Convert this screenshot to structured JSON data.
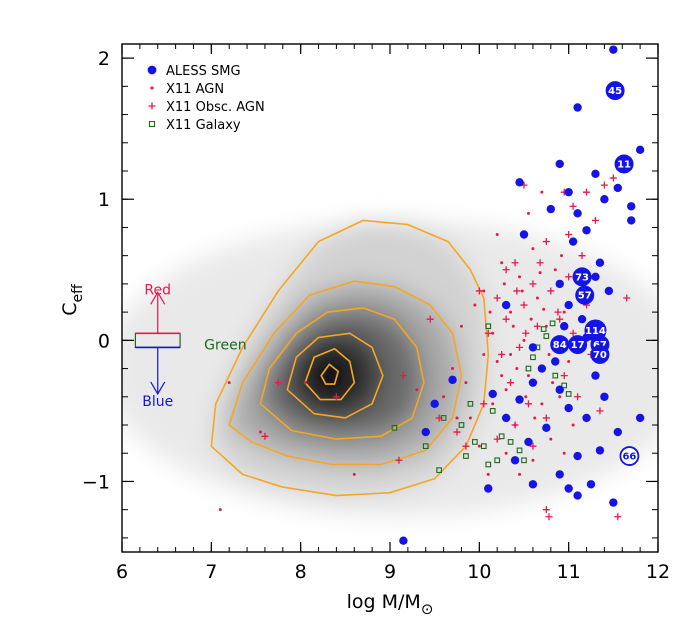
{
  "colors": {
    "agn": "#e8194a",
    "smg": "#1414e6",
    "galaxy": "#1a6b1a",
    "contour": "#f5a623",
    "red_label": "#e8194a",
    "green_label": "#1a6b1a",
    "blue_label": "#1414e6"
  },
  "chart_data": {
    "type": "scatter",
    "xlabel": "log M/M",
    "xlabel_sub": "⊙",
    "ylabel": "C",
    "ylabel_sub": "eff",
    "xlim": [
      6,
      12
    ],
    "ylim": [
      -1.5,
      2.1
    ],
    "x_ticks": [
      6,
      7,
      8,
      9,
      10,
      11,
      12
    ],
    "x_tick_labels": [
      "6",
      "7",
      "8",
      "9",
      "10",
      "11",
      "12"
    ],
    "y_ticks": [
      -1,
      0,
      1,
      2
    ],
    "y_tick_labels": [
      "−1",
      "0",
      "1",
      "2"
    ],
    "legend_position": "top-left",
    "legend": [
      {
        "label": "ALESS SMG",
        "marker": "filled-circle",
        "color": "smg"
      },
      {
        "label": "X11 AGN",
        "marker": "dot",
        "color": "agn"
      },
      {
        "label": "X11 Obsc. AGN",
        "marker": "plus",
        "color": "agn"
      },
      {
        "label": "X11 Galaxy",
        "marker": "open-square",
        "color": "galaxy"
      }
    ],
    "density_background": {
      "description": "grayscale 2D density of galaxies",
      "peak": {
        "x": 8.2,
        "y": -0.25
      }
    },
    "color_regions": {
      "box_center": 0,
      "box_x": [
        6.15,
        6.65
      ],
      "box_y": [
        -0.05,
        0.05
      ],
      "labels": [
        {
          "text": "Red",
          "x": 6.4,
          "y": 0.36,
          "color": "red_label"
        },
        {
          "text": "Green",
          "x": 6.92,
          "y": -0.03,
          "color": "green_label"
        },
        {
          "text": "Blue",
          "x": 6.4,
          "y": -0.43,
          "color": "blue_label"
        }
      ]
    },
    "contours": [
      [
        [
          7.0,
          -0.75
        ],
        [
          7.05,
          -0.45
        ],
        [
          7.35,
          -0.05
        ],
        [
          7.75,
          0.35
        ],
        [
          8.2,
          0.7
        ],
        [
          8.7,
          0.85
        ],
        [
          9.2,
          0.82
        ],
        [
          9.65,
          0.7
        ],
        [
          9.9,
          0.5
        ],
        [
          10.05,
          0.3
        ],
        [
          10.1,
          -0.1
        ],
        [
          10.05,
          -0.45
        ],
        [
          9.85,
          -0.75
        ],
        [
          9.5,
          -0.98
        ],
        [
          9.0,
          -1.08
        ],
        [
          8.4,
          -1.1
        ],
        [
          7.8,
          -1.04
        ],
        [
          7.35,
          -0.95
        ]
      ],
      [
        [
          7.2,
          -0.6
        ],
        [
          7.35,
          -0.3
        ],
        [
          7.7,
          0.05
        ],
        [
          8.1,
          0.32
        ],
        [
          8.6,
          0.42
        ],
        [
          9.05,
          0.38
        ],
        [
          9.45,
          0.25
        ],
        [
          9.7,
          0.05
        ],
        [
          9.8,
          -0.25
        ],
        [
          9.7,
          -0.55
        ],
        [
          9.4,
          -0.78
        ],
        [
          8.9,
          -0.88
        ],
        [
          8.35,
          -0.88
        ],
        [
          7.85,
          -0.82
        ],
        [
          7.45,
          -0.72
        ]
      ],
      [
        [
          7.55,
          -0.45
        ],
        [
          7.65,
          -0.2
        ],
        [
          7.95,
          0.05
        ],
        [
          8.3,
          0.2
        ],
        [
          8.7,
          0.23
        ],
        [
          9.05,
          0.15
        ],
        [
          9.3,
          -0.05
        ],
        [
          9.38,
          -0.3
        ],
        [
          9.25,
          -0.55
        ],
        [
          8.9,
          -0.68
        ],
        [
          8.4,
          -0.7
        ],
        [
          7.9,
          -0.64
        ]
      ],
      [
        [
          7.85,
          -0.35
        ],
        [
          7.95,
          -0.12
        ],
        [
          8.2,
          0.02
        ],
        [
          8.55,
          0.05
        ],
        [
          8.8,
          -0.05
        ],
        [
          8.92,
          -0.25
        ],
        [
          8.8,
          -0.45
        ],
        [
          8.5,
          -0.55
        ],
        [
          8.15,
          -0.52
        ]
      ],
      [
        [
          8.05,
          -0.3
        ],
        [
          8.15,
          -0.12
        ],
        [
          8.38,
          -0.06
        ],
        [
          8.55,
          -0.15
        ],
        [
          8.6,
          -0.3
        ],
        [
          8.45,
          -0.42
        ],
        [
          8.22,
          -0.42
        ]
      ],
      [
        [
          8.23,
          -0.25
        ],
        [
          8.32,
          -0.17
        ],
        [
          8.42,
          -0.22
        ],
        [
          8.38,
          -0.31
        ],
        [
          8.28,
          -0.31
        ]
      ]
    ],
    "smg_points": [
      {
        "x": 11.5,
        "y": 2.06
      },
      {
        "x": 11.1,
        "y": 1.65
      },
      {
        "x": 11.8,
        "y": 1.35
      },
      {
        "x": 10.9,
        "y": 1.25
      },
      {
        "x": 11.3,
        "y": 1.18
      },
      {
        "x": 11.55,
        "y": 1.08
      },
      {
        "x": 10.45,
        "y": 1.12
      },
      {
        "x": 11.0,
        "y": 1.05
      },
      {
        "x": 11.4,
        "y": 1.0
      },
      {
        "x": 11.7,
        "y": 0.95
      },
      {
        "x": 10.8,
        "y": 0.93
      },
      {
        "x": 11.1,
        "y": 0.9
      },
      {
        "x": 11.7,
        "y": 0.85
      },
      {
        "x": 11.2,
        "y": 0.78
      },
      {
        "x": 10.5,
        "y": 0.75
      },
      {
        "x": 11.05,
        "y": 0.7
      },
      {
        "x": 11.35,
        "y": 0.55
      },
      {
        "x": 11.3,
        "y": 0.45
      },
      {
        "x": 11.45,
        "y": 0.35
      },
      {
        "x": 10.9,
        "y": 0.4
      },
      {
        "x": 11.0,
        "y": 0.25
      },
      {
        "x": 10.95,
        "y": 0.1
      },
      {
        "x": 11.2,
        "y": 0.02
      },
      {
        "x": 10.85,
        "y": -0.15
      },
      {
        "x": 10.7,
        "y": -0.2
      },
      {
        "x": 11.3,
        "y": -0.25
      },
      {
        "x": 10.6,
        "y": -0.3
      },
      {
        "x": 10.9,
        "y": -0.35
      },
      {
        "x": 11.4,
        "y": -0.4
      },
      {
        "x": 10.45,
        "y": -0.42
      },
      {
        "x": 11.0,
        "y": -0.48
      },
      {
        "x": 11.2,
        "y": -0.55
      },
      {
        "x": 10.75,
        "y": -0.62
      },
      {
        "x": 11.55,
        "y": -0.65
      },
      {
        "x": 10.3,
        "y": -0.55
      },
      {
        "x": 10.15,
        "y": -0.38
      },
      {
        "x": 9.7,
        "y": -0.28
      },
      {
        "x": 9.5,
        "y": -0.45
      },
      {
        "x": 9.4,
        "y": -0.65
      },
      {
        "x": 10.55,
        "y": -0.72
      },
      {
        "x": 11.35,
        "y": -0.78
      },
      {
        "x": 11.1,
        "y": -0.82
      },
      {
        "x": 10.4,
        "y": -0.85
      },
      {
        "x": 10.9,
        "y": -0.95
      },
      {
        "x": 11.25,
        "y": -1.02
      },
      {
        "x": 11.0,
        "y": -1.05
      },
      {
        "x": 10.6,
        "y": -1.02
      },
      {
        "x": 10.1,
        "y": -1.05
      },
      {
        "x": 11.1,
        "y": -1.1
      },
      {
        "x": 11.5,
        "y": -1.15
      },
      {
        "x": 11.8,
        "y": -0.55
      },
      {
        "x": 9.15,
        "y": -1.42
      },
      {
        "x": 10.3,
        "y": 0.25
      },
      {
        "x": 10.6,
        "y": -0.05
      },
      {
        "x": 11.15,
        "y": 0.15
      }
    ],
    "smg_labeled": [
      {
        "x": 11.52,
        "y": 1.77,
        "label": "45",
        "filled": true
      },
      {
        "x": 11.62,
        "y": 1.25,
        "label": "11",
        "filled": true
      },
      {
        "x": 11.15,
        "y": 0.45,
        "label": "73",
        "filled": true
      },
      {
        "x": 11.18,
        "y": 0.32,
        "label": "57",
        "filled": true
      },
      {
        "x": 11.3,
        "y": 0.07,
        "label": "114",
        "filled": true
      },
      {
        "x": 10.9,
        "y": -0.03,
        "label": "84",
        "filled": true
      },
      {
        "x": 11.1,
        "y": -0.03,
        "label": "17",
        "filled": true
      },
      {
        "x": 11.35,
        "y": -0.03,
        "label": "67",
        "filled": true
      },
      {
        "x": 11.35,
        "y": -0.1,
        "label": "70",
        "filled": true
      },
      {
        "x": 11.68,
        "y": -0.82,
        "label": "66",
        "filled": false
      }
    ],
    "agn_points": [
      {
        "x": 7.2,
        "y": -0.3
      },
      {
        "x": 7.1,
        "y": -1.2
      },
      {
        "x": 7.55,
        "y": -0.65
      },
      {
        "x": 8.05,
        "y": -0.3
      },
      {
        "x": 8.6,
        "y": -0.95
      },
      {
        "x": 9.3,
        "y": -0.35
      },
      {
        "x": 9.7,
        "y": -0.2
      },
      {
        "x": 9.8,
        "y": 0.1
      },
      {
        "x": 9.9,
        "y": -0.55
      },
      {
        "x": 10.0,
        "y": -0.75
      },
      {
        "x": 10.05,
        "y": 0.35
      },
      {
        "x": 10.15,
        "y": 0.05
      },
      {
        "x": 10.2,
        "y": -0.15
      },
      {
        "x": 10.25,
        "y": 0.55
      },
      {
        "x": 10.3,
        "y": -0.35
      },
      {
        "x": 10.35,
        "y": 0.2
      },
      {
        "x": 10.4,
        "y": -0.6
      },
      {
        "x": 10.45,
        "y": 0.45
      },
      {
        "x": 10.5,
        "y": 0.0
      },
      {
        "x": 10.55,
        "y": -0.25
      },
      {
        "x": 10.6,
        "y": 0.65
      },
      {
        "x": 10.65,
        "y": 0.3
      },
      {
        "x": 10.7,
        "y": -0.45
      },
      {
        "x": 10.75,
        "y": 0.1
      },
      {
        "x": 10.8,
        "y": -0.7
      },
      {
        "x": 10.85,
        "y": 0.5
      },
      {
        "x": 10.9,
        "y": -0.4
      },
      {
        "x": 10.95,
        "y": 0.2
      },
      {
        "x": 11.0,
        "y": -0.15
      },
      {
        "x": 10.45,
        "y": -0.95
      },
      {
        "x": 10.3,
        "y": -0.8
      },
      {
        "x": 10.1,
        "y": -0.95
      },
      {
        "x": 9.95,
        "y": 0.25
      },
      {
        "x": 10.2,
        "y": 0.75
      },
      {
        "x": 10.7,
        "y": 1.05
      },
      {
        "x": 10.55,
        "y": 0.9
      },
      {
        "x": 10.35,
        "y": -0.1
      },
      {
        "x": 10.15,
        "y": -0.45
      },
      {
        "x": 10.62,
        "y": -0.55
      },
      {
        "x": 10.82,
        "y": -0.3
      },
      {
        "x": 10.38,
        "y": 0.1
      },
      {
        "x": 10.25,
        "y": -0.25
      },
      {
        "x": 10.48,
        "y": 0.35
      },
      {
        "x": 10.72,
        "y": 0.22
      },
      {
        "x": 9.6,
        "y": -0.4
      },
      {
        "x": 9.75,
        "y": -0.55
      },
      {
        "x": 10.05,
        "y": -0.1
      },
      {
        "x": 10.92,
        "y": 0.6
      },
      {
        "x": 11.05,
        "y": -0.6
      },
      {
        "x": 10.6,
        "y": -0.85
      },
      {
        "x": 10.28,
        "y": 0.4
      },
      {
        "x": 10.52,
        "y": -0.4
      },
      {
        "x": 10.68,
        "y": 0.48
      },
      {
        "x": 10.12,
        "y": 0.2
      },
      {
        "x": 10.42,
        "y": -0.2
      },
      {
        "x": 10.78,
        "y": -0.1
      },
      {
        "x": 9.85,
        "y": -0.3
      },
      {
        "x": 10.95,
        "y": -0.8
      },
      {
        "x": 10.58,
        "y": 0.15
      },
      {
        "x": 10.32,
        "y": -0.55
      }
    ],
    "obsc_agn_points": [
      {
        "x": 7.75,
        "y": -0.3
      },
      {
        "x": 7.6,
        "y": -0.68
      },
      {
        "x": 8.4,
        "y": -0.4
      },
      {
        "x": 9.15,
        "y": -0.25
      },
      {
        "x": 9.1,
        "y": -0.85
      },
      {
        "x": 9.45,
        "y": 0.15
      },
      {
        "x": 9.55,
        "y": -0.55
      },
      {
        "x": 9.75,
        "y": -0.65
      },
      {
        "x": 9.85,
        "y": -0.75
      },
      {
        "x": 10.05,
        "y": -0.45
      },
      {
        "x": 10.1,
        "y": 0.05
      },
      {
        "x": 10.2,
        "y": 0.3
      },
      {
        "x": 10.25,
        "y": -0.1
      },
      {
        "x": 10.3,
        "y": 0.15
      },
      {
        "x": 10.35,
        "y": -0.3
      },
      {
        "x": 10.4,
        "y": 0.55
      },
      {
        "x": 10.45,
        "y": -0.05
      },
      {
        "x": 10.5,
        "y": 0.25
      },
      {
        "x": 10.55,
        "y": -0.45
      },
      {
        "x": 10.6,
        "y": 0.4
      },
      {
        "x": 10.65,
        "y": 0.1
      },
      {
        "x": 10.7,
        "y": -0.2
      },
      {
        "x": 10.75,
        "y": 0.7
      },
      {
        "x": 10.8,
        "y": 0.35
      },
      {
        "x": 10.85,
        "y": -0.05
      },
      {
        "x": 10.9,
        "y": 0.15
      },
      {
        "x": 10.95,
        "y": -0.25
      },
      {
        "x": 11.0,
        "y": 0.45
      },
      {
        "x": 11.05,
        "y": 0.05
      },
      {
        "x": 11.1,
        "y": -0.4
      },
      {
        "x": 11.15,
        "y": 0.6
      },
      {
        "x": 11.2,
        "y": 0.25
      },
      {
        "x": 11.25,
        "y": -0.1
      },
      {
        "x": 11.3,
        "y": 0.85
      },
      {
        "x": 11.4,
        "y": 1.1
      },
      {
        "x": 11.5,
        "y": 1.15
      },
      {
        "x": 11.05,
        "y": 0.95
      },
      {
        "x": 11.2,
        "y": 1.05
      },
      {
        "x": 10.95,
        "y": 1.05
      },
      {
        "x": 11.65,
        "y": 0.3
      },
      {
        "x": 10.5,
        "y": 1.1
      },
      {
        "x": 10.3,
        "y": 0.5
      },
      {
        "x": 10.4,
        "y": -0.6
      },
      {
        "x": 10.2,
        "y": -0.7
      },
      {
        "x": 10.0,
        "y": 0.35
      },
      {
        "x": 10.6,
        "y": -0.75
      },
      {
        "x": 10.75,
        "y": -0.55
      },
      {
        "x": 11.35,
        "y": -0.5
      },
      {
        "x": 11.55,
        "y": -1.25
      },
      {
        "x": 10.75,
        "y": -1.2
      },
      {
        "x": 10.78,
        "y": -1.25
      },
      {
        "x": 11.0,
        "y": 0.75
      },
      {
        "x": 10.88,
        "y": 0.2
      },
      {
        "x": 10.68,
        "y": 0.55
      },
      {
        "x": 10.52,
        "y": 0.05
      },
      {
        "x": 10.42,
        "y": 0.35
      }
    ],
    "galaxy_points": [
      {
        "x": 9.05,
        "y": -0.62
      },
      {
        "x": 9.4,
        "y": -0.75
      },
      {
        "x": 9.55,
        "y": -0.92
      },
      {
        "x": 9.6,
        "y": -0.55
      },
      {
        "x": 9.8,
        "y": -0.6
      },
      {
        "x": 9.85,
        "y": -0.82
      },
      {
        "x": 9.95,
        "y": -0.72
      },
      {
        "x": 10.05,
        "y": -0.75
      },
      {
        "x": 10.15,
        "y": -0.5
      },
      {
        "x": 10.25,
        "y": -0.68
      },
      {
        "x": 10.35,
        "y": -0.72
      },
      {
        "x": 10.45,
        "y": -0.78
      },
      {
        "x": 10.1,
        "y": -0.88
      },
      {
        "x": 10.2,
        "y": -0.85
      },
      {
        "x": 10.5,
        "y": -0.85
      },
      {
        "x": 10.55,
        "y": -0.2
      },
      {
        "x": 10.6,
        "y": -0.12
      },
      {
        "x": 10.65,
        "y": -0.05
      },
      {
        "x": 10.72,
        "y": 0.08
      },
      {
        "x": 10.75,
        "y": 0.03
      },
      {
        "x": 10.85,
        "y": -0.25
      },
      {
        "x": 10.95,
        "y": -0.32
      },
      {
        "x": 11.0,
        "y": -0.38
      },
      {
        "x": 10.1,
        "y": 0.1
      },
      {
        "x": 9.9,
        "y": -0.45
      },
      {
        "x": 10.82,
        "y": 0.12
      }
    ]
  }
}
